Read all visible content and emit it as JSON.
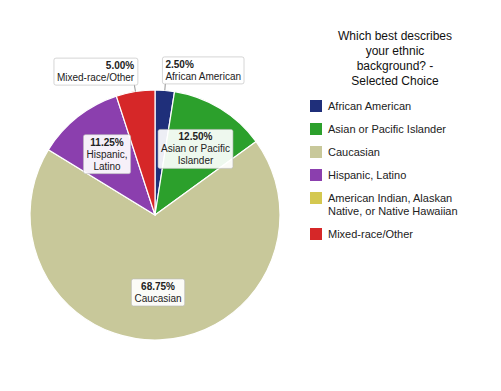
{
  "chart_data": {
    "type": "pie",
    "title": "Which best describes\nyour ethnic\nbackground? -\nSelected Choice",
    "categories": [
      "African American",
      "Asian or Pacific\nIslander",
      "Caucasian",
      "Hispanic,\nLatino",
      "Mixed-race/Other"
    ],
    "values": [
      2.5,
      12.5,
      68.75,
      11.25,
      5.0
    ],
    "value_labels": [
      "2.50%",
      "12.50%",
      "68.75%",
      "11.25%",
      "5.00%"
    ],
    "colors": [
      "#1f2f7a",
      "#2ca02c",
      "#c8c89a",
      "#8b3fae",
      "#d62728"
    ],
    "data_labels": true,
    "legend": "right",
    "legend_labels": [
      "African American",
      "Asian or Pacific Islander",
      "Caucasian",
      "Hispanic, Latino",
      "American Indian, Alaskan\nNative, or Native Hawaiian",
      "Mixed-race/Other"
    ],
    "legend_colors": [
      "#1f2f7a",
      "#2ca02c",
      "#c8c89a",
      "#8b3fae",
      "#d4c850",
      "#d62728"
    ]
  }
}
